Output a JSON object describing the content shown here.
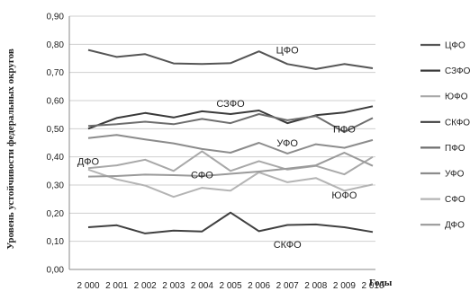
{
  "chart_data": {
    "type": "line",
    "title": "",
    "xlabel": "Годы",
    "ylabel": "Уровень устойчивости федеральных округов",
    "ylim": [
      0,
      0.9
    ],
    "y_ticks": [
      "0,00",
      "0,10",
      "0,20",
      "0,30",
      "0,40",
      "0,50",
      "0,60",
      "0,70",
      "0,80",
      "0,90"
    ],
    "categories": [
      "2 000",
      "2 001",
      "2 002",
      "2 003",
      "2 004",
      "2 005",
      "2 006",
      "2 007",
      "2 008",
      "2 009",
      "2 010"
    ],
    "grid": true,
    "legend_position": "right",
    "series": [
      {
        "name": "ЦФО",
        "color": "#555555",
        "values": [
          0.78,
          0.755,
          0.765,
          0.732,
          0.73,
          0.733,
          0.775,
          0.73,
          0.712,
          0.73,
          0.715
        ]
      },
      {
        "name": "СЗФО",
        "color": "#3a3a3a",
        "values": [
          0.5,
          0.538,
          0.556,
          0.54,
          0.562,
          0.552,
          0.565,
          0.52,
          0.548,
          0.558,
          0.58
        ]
      },
      {
        "name": "ЮФО",
        "color": "#a8a8a8",
        "values": [
          0.36,
          0.37,
          0.39,
          0.35,
          0.42,
          0.35,
          0.385,
          0.355,
          0.368,
          0.338,
          0.4
        ]
      },
      {
        "name": "СКФО",
        "color": "#404040",
        "values": [
          0.15,
          0.157,
          0.128,
          0.138,
          0.135,
          0.202,
          0.136,
          0.158,
          0.16,
          0.15,
          0.133
        ]
      },
      {
        "name": "ПФО",
        "color": "#6e6e6e",
        "values": [
          0.51,
          0.516,
          0.525,
          0.516,
          0.535,
          0.52,
          0.552,
          0.53,
          0.545,
          0.488,
          0.538
        ]
      },
      {
        "name": "УФО",
        "color": "#8c8c8c",
        "values": [
          0.467,
          0.478,
          0.462,
          0.448,
          0.428,
          0.415,
          0.45,
          0.412,
          0.445,
          0.432,
          0.46
        ]
      },
      {
        "name": "СФО",
        "color": "#b4b4b4",
        "values": [
          0.355,
          0.32,
          0.298,
          0.258,
          0.29,
          0.28,
          0.345,
          0.31,
          0.325,
          0.28,
          0.302
        ]
      },
      {
        "name": "ДФО",
        "color": "#9a9a9a",
        "values": [
          0.33,
          0.332,
          0.337,
          0.335,
          0.332,
          0.34,
          0.348,
          0.358,
          0.37,
          0.415,
          0.368
        ]
      }
    ],
    "annotations": [
      {
        "text": "ЦФО",
        "x": "2 007",
        "y": 0.78
      },
      {
        "text": "СЗФО",
        "x": "2 005",
        "y": 0.59
      },
      {
        "text": "ПФО",
        "x": "2 009",
        "y": 0.5
      },
      {
        "text": "УФО",
        "x": "2 007",
        "y": 0.45
      },
      {
        "text": "ДФО",
        "x": "2 000",
        "y": 0.385
      },
      {
        "text": "СФО",
        "x": "2 004",
        "y": 0.337
      },
      {
        "text": "ЮФО",
        "x": "2 009",
        "y": 0.265
      },
      {
        "text": "СКФО",
        "x": "2 007",
        "y": 0.09
      }
    ]
  }
}
